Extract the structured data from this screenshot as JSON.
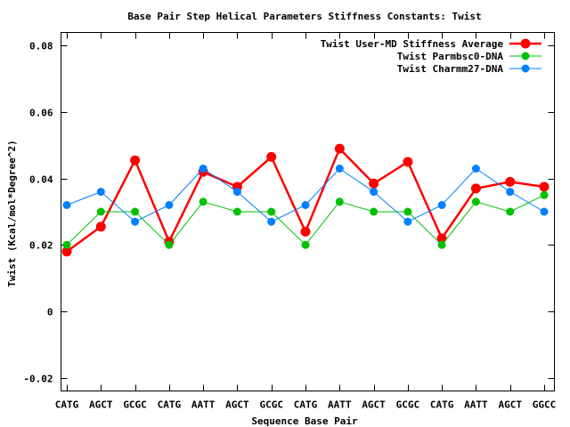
{
  "chart_data": {
    "type": "line",
    "title": "Base Pair Step Helical Parameters Stiffness Constants: Twist",
    "xlabel": "Sequence Base Pair",
    "ylabel": "Twist (Kcal/mol*Degree^2)",
    "categories": [
      "CATG",
      "AGCT",
      "GCGC",
      "CATG",
      "AATT",
      "AGCT",
      "GCGC",
      "CATG",
      "AATT",
      "AGCT",
      "GCGC",
      "CATG",
      "AATT",
      "AGCT",
      "GGCC"
    ],
    "ylim": [
      -0.024,
      0.084
    ],
    "yticks": [
      -0.02,
      0,
      0.02,
      0.04,
      0.06,
      0.08
    ],
    "ytick_labels": [
      "-0.02",
      "0",
      "0.02",
      "0.04",
      "0.06",
      "0.08"
    ],
    "grid": false,
    "legend_position": "top-right",
    "series": [
      {
        "name": "Twist User-MD Stiffness Average",
        "color": "#ff0000",
        "values": [
          0.018,
          0.0255,
          0.0455,
          0.021,
          0.042,
          0.0375,
          0.0465,
          0.024,
          0.049,
          0.0385,
          0.045,
          0.022,
          0.037,
          0.039,
          0.0375
        ]
      },
      {
        "name": "Twist Parmbsc0-DNA",
        "color": "#00c000",
        "values": [
          0.02,
          0.03,
          0.03,
          0.02,
          0.033,
          0.03,
          0.03,
          0.02,
          0.033,
          0.03,
          0.03,
          0.02,
          0.033,
          0.03,
          0.035
        ]
      },
      {
        "name": "Twist Charmm27-DNA",
        "color": "#0080ff",
        "values": [
          0.032,
          0.036,
          0.027,
          0.032,
          0.043,
          0.036,
          0.027,
          0.032,
          0.043,
          0.036,
          0.027,
          0.032,
          0.043,
          0.036,
          0.03
        ]
      }
    ]
  }
}
